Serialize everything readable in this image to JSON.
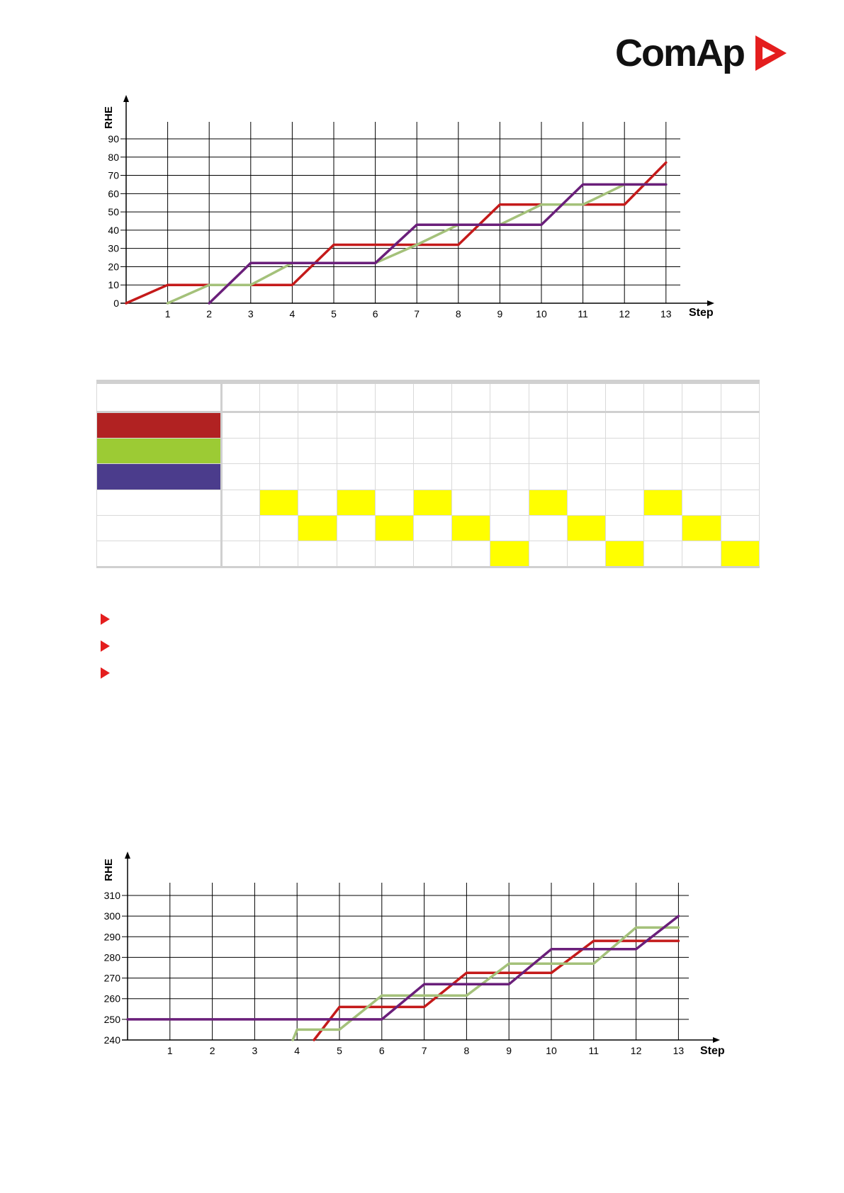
{
  "brand": {
    "name": "ComAp",
    "accent": "#e41e1e"
  },
  "colors": {
    "genset_red": "#c41a1a",
    "genset_green": "#a4c17a",
    "genset_purple": "#6a1f7a",
    "legend_red": "#b12222",
    "legend_green": "#9ccb34",
    "legend_purple": "#4b3c8c",
    "highlight": "#ffff00"
  },
  "chart_data": [
    {
      "type": "line",
      "ylabel": "RHE",
      "xlabel": "Step",
      "x_ticks": [
        1,
        2,
        3,
        4,
        5,
        6,
        7,
        8,
        9,
        10,
        11,
        12,
        13
      ],
      "y_ticks": [
        0,
        10,
        20,
        30,
        40,
        50,
        60,
        70,
        80,
        90
      ],
      "ylim": [
        0,
        90
      ],
      "xlim": [
        0,
        13
      ],
      "grid": true,
      "series": [
        {
          "color": "#c41a1a",
          "points": [
            [
              0,
              0
            ],
            [
              1,
              10
            ],
            [
              3,
              10
            ],
            [
              4,
              10
            ],
            [
              5,
              32
            ],
            [
              8,
              32
            ],
            [
              9,
              54
            ],
            [
              12,
              54
            ],
            [
              13,
              77
            ]
          ]
        },
        {
          "color": "#a4c17a",
          "points": [
            [
              1,
              0
            ],
            [
              2,
              10
            ],
            [
              3,
              10
            ],
            [
              4,
              22
            ],
            [
              6,
              22
            ],
            [
              7,
              32
            ],
            [
              8,
              43
            ],
            [
              9,
              43
            ],
            [
              10,
              54
            ],
            [
              11,
              54
            ],
            [
              12,
              65
            ],
            [
              13,
              65
            ]
          ]
        },
        {
          "color": "#6a1f7a",
          "points": [
            [
              2,
              0
            ],
            [
              3,
              22
            ],
            [
              6,
              22
            ],
            [
              7,
              43
            ],
            [
              10,
              43
            ],
            [
              11,
              65
            ],
            [
              13,
              65
            ]
          ]
        }
      ]
    },
    {
      "type": "line",
      "ylabel": "RHE",
      "xlabel": "Step",
      "x_ticks": [
        1,
        2,
        3,
        4,
        5,
        6,
        7,
        8,
        9,
        10,
        11,
        12,
        13
      ],
      "y_ticks": [
        240,
        250,
        260,
        270,
        280,
        290,
        300,
        310
      ],
      "ylim": [
        240,
        310
      ],
      "xlim": [
        0,
        13
      ],
      "grid": true,
      "series": [
        {
          "color": "#c41a1a",
          "points": [
            [
              4.4,
              240
            ],
            [
              5,
              256
            ],
            [
              7,
              256
            ],
            [
              8,
              272.5
            ],
            [
              10,
              272.5
            ],
            [
              11,
              288
            ],
            [
              13,
              288
            ]
          ]
        },
        {
          "color": "#a4c17a",
          "points": [
            [
              3.9,
              240
            ],
            [
              4,
              245
            ],
            [
              5,
              245
            ],
            [
              6,
              261.5
            ],
            [
              8,
              261.5
            ],
            [
              9,
              277
            ],
            [
              11,
              277
            ],
            [
              12,
              294.5
            ],
            [
              13,
              294.5
            ]
          ]
        },
        {
          "color": "#6a1f7a",
          "points": [
            [
              0,
              250
            ],
            [
              6,
              250
            ],
            [
              7,
              267
            ],
            [
              9,
              267
            ],
            [
              10,
              284
            ],
            [
              12,
              284
            ],
            [
              13,
              300
            ]
          ]
        }
      ]
    }
  ],
  "step_table": {
    "columns": 13,
    "legend_rows": [
      "#b12222",
      "#9ccb34",
      "#4b3c8c"
    ],
    "highlight_rows": [
      [
        1,
        3,
        5,
        8,
        11
      ],
      [
        2,
        4,
        6,
        9,
        12
      ],
      [
        7,
        10,
        13
      ]
    ]
  },
  "bullets": [
    "",
    "",
    ""
  ]
}
